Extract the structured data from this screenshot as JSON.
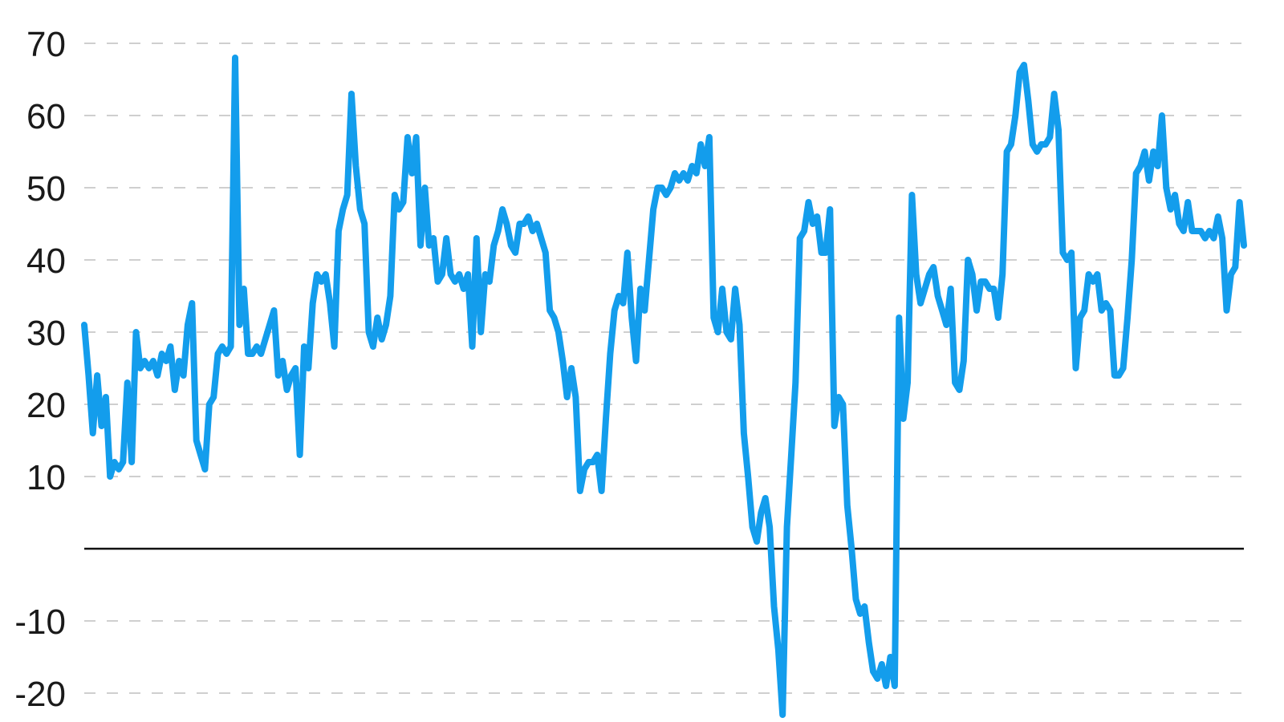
{
  "chart_data": {
    "type": "line",
    "title": "",
    "xlabel": "",
    "ylabel": "",
    "ylim": [
      -20,
      70
    ],
    "yticks": [
      -20,
      -10,
      10,
      20,
      30,
      40,
      50,
      60,
      70
    ],
    "grid": "horizontal dashed",
    "zero_line": true,
    "colors": {
      "series": "#139DEC",
      "grid": "#CFCFCF",
      "zero": "#111111"
    },
    "series": [
      {
        "values": [
          31,
          24,
          16,
          24,
          17,
          21,
          10,
          12,
          11,
          12,
          23,
          12,
          30,
          25,
          26,
          25,
          26,
          24,
          27,
          26,
          28,
          22,
          26,
          24,
          31,
          34,
          15,
          13,
          11,
          20,
          21,
          27,
          28,
          27,
          28,
          68,
          31,
          36,
          27,
          27,
          28,
          27,
          29,
          31,
          33,
          24,
          26,
          22,
          24,
          25,
          13,
          28,
          25,
          34,
          38,
          37,
          38,
          34,
          28,
          44,
          47,
          49,
          63,
          53,
          47,
          45,
          30,
          28,
          32,
          29,
          31,
          35,
          49,
          47,
          48,
          57,
          52,
          57,
          42,
          50,
          42,
          43,
          37,
          38,
          43,
          38,
          37,
          38,
          36,
          38,
          28,
          43,
          30,
          38,
          37,
          42,
          44,
          47,
          45,
          42,
          41,
          45,
          45,
          46,
          44,
          45,
          43,
          41,
          33,
          32,
          30,
          26,
          21,
          25,
          21,
          8,
          11,
          12,
          12,
          13,
          8,
          18,
          27,
          33,
          35,
          34,
          41,
          32,
          26,
          36,
          33,
          40,
          47,
          50,
          50,
          49,
          50,
          52,
          51,
          52,
          51,
          53,
          52,
          56,
          53,
          57,
          32,
          30,
          36,
          30,
          29,
          36,
          31,
          16,
          10,
          3,
          1,
          5,
          7,
          3,
          -8,
          -14,
          -23,
          3,
          13,
          23,
          43,
          44,
          48,
          45,
          46,
          41,
          41,
          47,
          17,
          21,
          20,
          6,
          0,
          -7,
          -9,
          -8,
          -13,
          -17,
          -18,
          -16,
          -19,
          -15,
          -19,
          32,
          18,
          23,
          49,
          38,
          34,
          36,
          38,
          39,
          35,
          33,
          31,
          36,
          23,
          22,
          26,
          40,
          38,
          33,
          37,
          37,
          36,
          36,
          32,
          38,
          55,
          56,
          60,
          66,
          67,
          62,
          56,
          55,
          56,
          56,
          57,
          63,
          58,
          41,
          40,
          41,
          25,
          32,
          33,
          38,
          37,
          38,
          33,
          34,
          33,
          24,
          24,
          25,
          32,
          40,
          52,
          53,
          55,
          51,
          55,
          53,
          60,
          50,
          47,
          49,
          45,
          44,
          48,
          44,
          44,
          44,
          43,
          44,
          43,
          46,
          43,
          33,
          38,
          39,
          48,
          42
        ]
      }
    ]
  }
}
